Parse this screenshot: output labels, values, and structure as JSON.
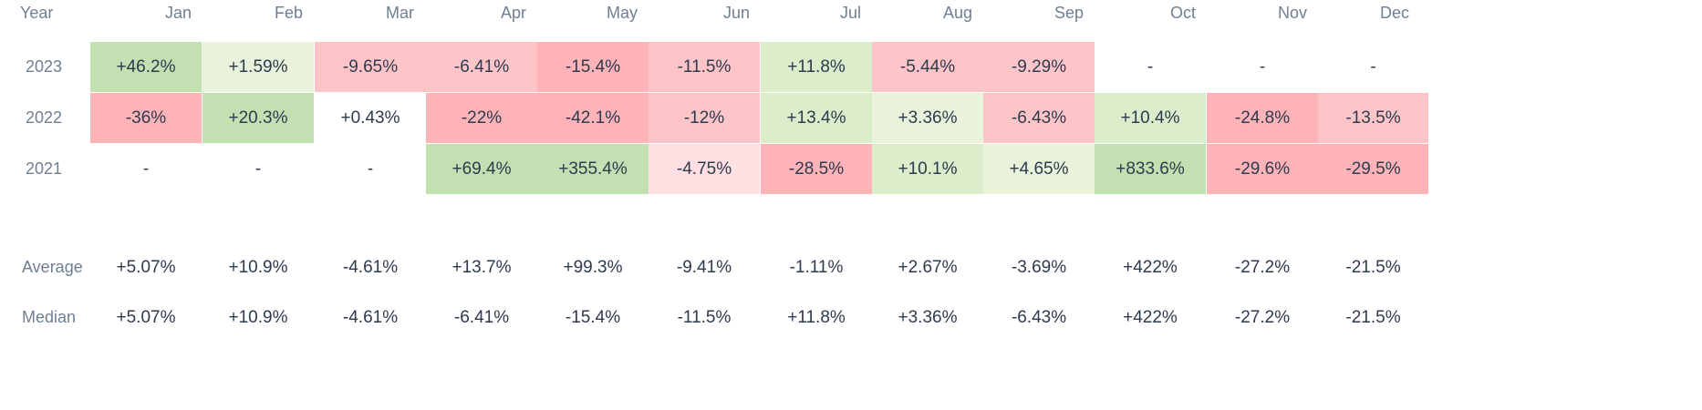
{
  "chart_data": {
    "type": "table",
    "corner_label": "Year",
    "months": [
      "Jan",
      "Feb",
      "Mar",
      "Apr",
      "May",
      "Jun",
      "Jul",
      "Aug",
      "Sep",
      "Oct",
      "Nov",
      "Dec"
    ],
    "rows": [
      {
        "year": "2023",
        "cells": [
          {
            "text": "+46.2%",
            "value": 46.2
          },
          {
            "text": "+1.59%",
            "value": 1.59
          },
          {
            "text": "-9.65%",
            "value": -9.65
          },
          {
            "text": "-6.41%",
            "value": -6.41
          },
          {
            "text": "-15.4%",
            "value": -15.4
          },
          {
            "text": "-11.5%",
            "value": -11.5
          },
          {
            "text": "+11.8%",
            "value": 11.8
          },
          {
            "text": "-5.44%",
            "value": -5.44
          },
          {
            "text": "-9.29%",
            "value": -9.29
          },
          {
            "text": "-",
            "value": null
          },
          {
            "text": "-",
            "value": null
          },
          {
            "text": "-",
            "value": null
          }
        ]
      },
      {
        "year": "2022",
        "cells": [
          {
            "text": "-36%",
            "value": -36
          },
          {
            "text": "+20.3%",
            "value": 20.3
          },
          {
            "text": "+0.43%",
            "value": 0.43
          },
          {
            "text": "-22%",
            "value": -22
          },
          {
            "text": "-42.1%",
            "value": -42.1
          },
          {
            "text": "-12%",
            "value": -12
          },
          {
            "text": "+13.4%",
            "value": 13.4
          },
          {
            "text": "+3.36%",
            "value": 3.36
          },
          {
            "text": "-6.43%",
            "value": -6.43
          },
          {
            "text": "+10.4%",
            "value": 10.4
          },
          {
            "text": "-24.8%",
            "value": -24.8
          },
          {
            "text": "-13.5%",
            "value": -13.5
          }
        ]
      },
      {
        "year": "2021",
        "cells": [
          {
            "text": "-",
            "value": null
          },
          {
            "text": "-",
            "value": null
          },
          {
            "text": "-",
            "value": null
          },
          {
            "text": "+69.4%",
            "value": 69.4
          },
          {
            "text": "+355.4%",
            "value": 355.4
          },
          {
            "text": "-4.75%",
            "value": -4.75
          },
          {
            "text": "-28.5%",
            "value": -28.5
          },
          {
            "text": "+10.1%",
            "value": 10.1
          },
          {
            "text": "+4.65%",
            "value": 4.65
          },
          {
            "text": "+833.6%",
            "value": 833.6
          },
          {
            "text": "-29.6%",
            "value": -29.6
          },
          {
            "text": "-29.5%",
            "value": -29.5
          }
        ]
      }
    ],
    "summary_rows": [
      {
        "label": "Average",
        "cells": [
          "+5.07%",
          "+10.9%",
          "-4.61%",
          "+13.7%",
          "+99.3%",
          "-9.41%",
          "-1.11%",
          "+2.67%",
          "-3.69%",
          "+422%",
          "-27.2%",
          "-21.5%"
        ]
      },
      {
        "label": "Median",
        "cells": [
          "+5.07%",
          "+10.9%",
          "-4.61%",
          "-6.41%",
          "-15.4%",
          "-11.5%",
          "+11.8%",
          "+3.36%",
          "-6.43%",
          "+422%",
          "-27.2%",
          "-21.5%"
        ]
      }
    ],
    "colors": {
      "green_strong": "#c2e0b2",
      "green_mid": "#dbedcb",
      "green_light": "#e9f3dc",
      "red_strong": "#fdb3b8",
      "red_mid": "#fec5c9",
      "red_light": "#ffdfe1",
      "neutral": "#ffffff"
    }
  }
}
